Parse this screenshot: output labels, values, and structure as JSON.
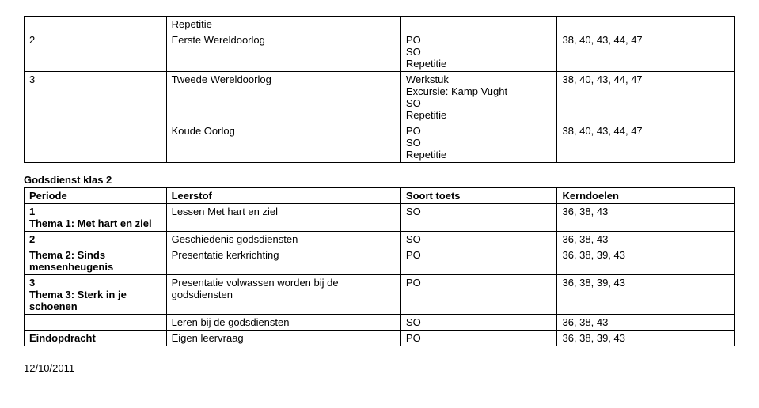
{
  "table1": {
    "rows": [
      {
        "c1": "",
        "c2": "Repetitie",
        "c3": "",
        "c4": ""
      },
      {
        "c1": "2",
        "c2": "Eerste Wereldoorlog",
        "c3": "PO\nSO\nRepetitie",
        "c4": "38, 40, 43, 44, 47"
      },
      {
        "c1": "3",
        "c2": "Tweede Wereldoorlog",
        "c3": "Werkstuk\nExcursie: Kamp Vught\nSO\nRepetitie",
        "c4": "38, 40, 43, 44, 47"
      },
      {
        "c1": "",
        "c2": "Koude Oorlog",
        "c3": "PO\nSO\nRepetitie",
        "c4": "38, 40, 43, 44, 47"
      }
    ]
  },
  "section_title": "Godsdienst klas 2",
  "table2": {
    "header": {
      "c1": "Periode",
      "c2": "Leerstof",
      "c3": "Soort toets",
      "c4": "Kerndoelen"
    },
    "rows": [
      {
        "c1": "1\nThema 1: Met hart en ziel",
        "c2": "Lessen Met hart en ziel",
        "c3": "SO",
        "c4": "36, 38, 43"
      },
      {
        "c1": "2",
        "c2": "Geschiedenis godsdiensten",
        "c3": "SO",
        "c4": "36, 38, 43"
      },
      {
        "c1": "Thema 2: Sinds mensenheugenis",
        "c2": "Presentatie kerkrichting",
        "c3": "PO",
        "c4": "36, 38, 39, 43"
      },
      {
        "c1": "3\nThema 3: Sterk in je schoenen",
        "c2": "Presentatie volwassen worden bij de godsdiensten",
        "c3": "PO",
        "c4": "36, 38, 39, 43"
      },
      {
        "c1": "",
        "c2": "Leren bij de godsdiensten",
        "c3": "SO",
        "c4": "36, 38, 43"
      },
      {
        "c1": "Eindopdracht",
        "c2": "Eigen leervraag",
        "c3": "PO",
        "c4": "36, 38, 39, 43"
      }
    ]
  },
  "footer_date": "12/10/2011"
}
